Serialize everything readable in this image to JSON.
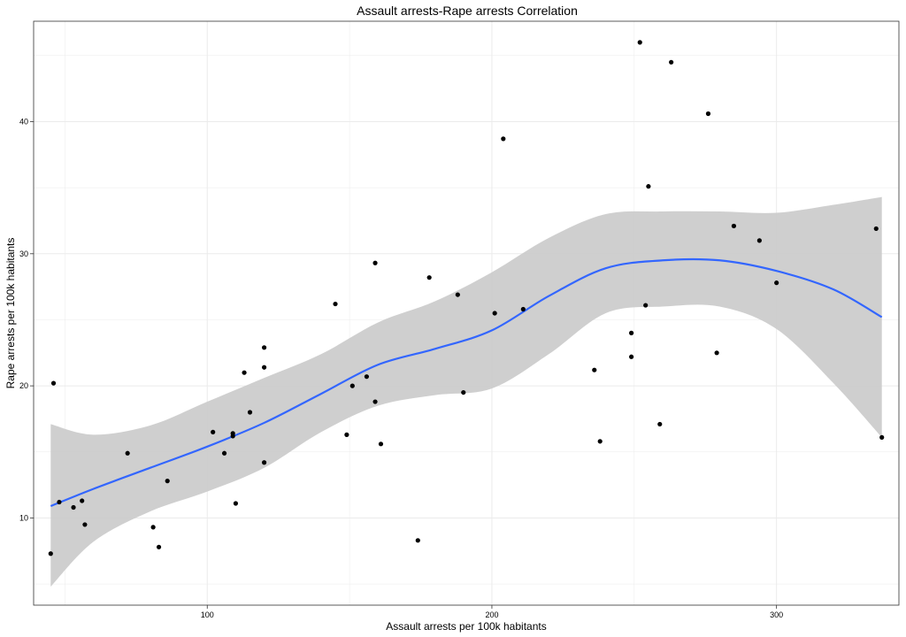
{
  "chart_data": {
    "type": "scatter",
    "title": "Assault arrests-Rape arrests Correlation",
    "xlabel": "Assault arrests per 100k habitants",
    "ylabel": "Rape arrests per 100k habitants",
    "xlim": [
      39,
      343
    ],
    "ylim": [
      3.4,
      47.6
    ],
    "x_ticks": [
      100,
      200,
      300
    ],
    "y_ticks": [
      10,
      20,
      30,
      40
    ],
    "x_minor_ticks": [
      50,
      150,
      250
    ],
    "y_minor_ticks": [
      5,
      15,
      25,
      35,
      45
    ],
    "grid": true,
    "colors": {
      "points": "#000000",
      "smooth_line": "#3366ff",
      "confidence_band": "#cccccc",
      "grid": "#ebebeb",
      "panel_border": "#333333"
    },
    "points": [
      {
        "x": 45,
        "y": 7.3
      },
      {
        "x": 46,
        "y": 20.2
      },
      {
        "x": 48,
        "y": 11.2
      },
      {
        "x": 53,
        "y": 10.8
      },
      {
        "x": 56,
        "y": 11.3
      },
      {
        "x": 57,
        "y": 9.5
      },
      {
        "x": 72,
        "y": 14.9
      },
      {
        "x": 81,
        "y": 9.3
      },
      {
        "x": 83,
        "y": 7.8
      },
      {
        "x": 86,
        "y": 12.8
      },
      {
        "x": 102,
        "y": 16.5
      },
      {
        "x": 106,
        "y": 14.9
      },
      {
        "x": 109,
        "y": 16.4
      },
      {
        "x": 109,
        "y": 16.2
      },
      {
        "x": 110,
        "y": 11.1
      },
      {
        "x": 113,
        "y": 21.0
      },
      {
        "x": 115,
        "y": 18.0
      },
      {
        "x": 120,
        "y": 22.9
      },
      {
        "x": 120,
        "y": 21.4
      },
      {
        "x": 120,
        "y": 14.2
      },
      {
        "x": 145,
        "y": 26.2
      },
      {
        "x": 149,
        "y": 16.3
      },
      {
        "x": 151,
        "y": 20.0
      },
      {
        "x": 156,
        "y": 20.7
      },
      {
        "x": 159,
        "y": 29.3
      },
      {
        "x": 159,
        "y": 18.8
      },
      {
        "x": 161,
        "y": 15.6
      },
      {
        "x": 174,
        "y": 8.3
      },
      {
        "x": 178,
        "y": 28.2
      },
      {
        "x": 188,
        "y": 26.9
      },
      {
        "x": 190,
        "y": 19.5
      },
      {
        "x": 201,
        "y": 25.5
      },
      {
        "x": 204,
        "y": 38.7
      },
      {
        "x": 211,
        "y": 25.8
      },
      {
        "x": 236,
        "y": 21.2
      },
      {
        "x": 238,
        "y": 15.8
      },
      {
        "x": 249,
        "y": 24.0
      },
      {
        "x": 249,
        "y": 22.2
      },
      {
        "x": 252,
        "y": 46.0
      },
      {
        "x": 254,
        "y": 26.1
      },
      {
        "x": 255,
        "y": 35.1
      },
      {
        "x": 259,
        "y": 17.1
      },
      {
        "x": 263,
        "y": 44.5
      },
      {
        "x": 276,
        "y": 40.6
      },
      {
        "x": 279,
        "y": 22.5
      },
      {
        "x": 285,
        "y": 32.1
      },
      {
        "x": 294,
        "y": 31.0
      },
      {
        "x": 300,
        "y": 27.8
      },
      {
        "x": 335,
        "y": 31.9
      },
      {
        "x": 337,
        "y": 16.1
      }
    ],
    "smooth": {
      "method": "loess",
      "x": [
        45,
        60,
        80,
        100,
        120,
        140,
        160,
        180,
        200,
        220,
        240,
        260,
        280,
        300,
        320,
        337
      ],
      "y": [
        10.9,
        12.2,
        13.8,
        15.4,
        17.2,
        19.4,
        21.6,
        22.8,
        24.2,
        26.8,
        28.9,
        29.5,
        29.5,
        28.7,
        27.3,
        25.2
      ],
      "ymin": [
        4.8,
        8.2,
        10.5,
        12.0,
        13.8,
        16.5,
        18.5,
        19.3,
        19.8,
        22.4,
        25.5,
        26.0,
        26.0,
        24.3,
        20.2,
        16.1
      ],
      "ymax": [
        17.1,
        16.3,
        17.0,
        18.8,
        20.6,
        22.4,
        24.8,
        26.4,
        28.6,
        31.2,
        33.0,
        33.2,
        33.2,
        33.1,
        33.7,
        34.3
      ]
    }
  }
}
